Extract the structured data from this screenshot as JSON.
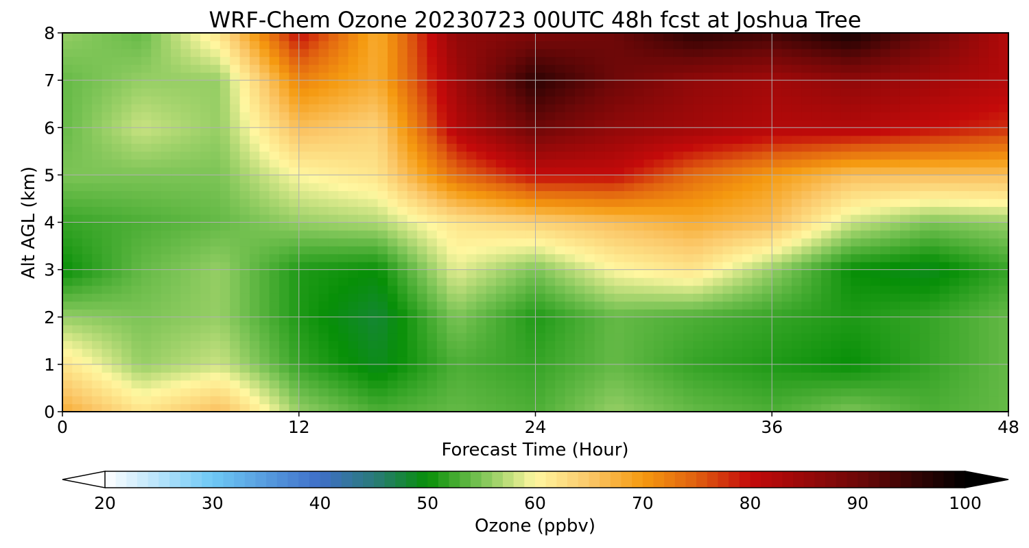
{
  "chart_data": {
    "type": "heatmap",
    "title": "WRF-Chem Ozone  20230723 00UTC 48h fcst at Joshua Tree",
    "xlabel": "Forecast Time (Hour)",
    "ylabel": "Alt AGL (km)",
    "x_ticks": [
      "0",
      "12",
      "24",
      "36",
      "48"
    ],
    "y_ticks": [
      "0",
      "1",
      "2",
      "3",
      "4",
      "5",
      "6",
      "7",
      "8"
    ],
    "xlim": [
      0,
      48
    ],
    "ylim": [
      0,
      8
    ],
    "grid": true,
    "x": [
      0,
      4,
      8,
      12,
      16,
      20,
      24,
      28,
      32,
      36,
      40,
      44,
      48
    ],
    "y": [
      0,
      1,
      2,
      3,
      4,
      5,
      6,
      7,
      8
    ],
    "z": [
      [
        68,
        62,
        66,
        56,
        53,
        54,
        53,
        56,
        54,
        53,
        55,
        53,
        54
      ],
      [
        62,
        56,
        58,
        52,
        49,
        53,
        52,
        54,
        52,
        51,
        50,
        52,
        54
      ],
      [
        56,
        55,
        56,
        51,
        48,
        55,
        51,
        54,
        53,
        52,
        51,
        52,
        54
      ],
      [
        50,
        54,
        56,
        51,
        50,
        59,
        55,
        60,
        62,
        56,
        50,
        49,
        52
      ],
      [
        52,
        53,
        54,
        56,
        57,
        62,
        64,
        66,
        68,
        66,
        58,
        55,
        56
      ],
      [
        55,
        55,
        55,
        60,
        62,
        74,
        80,
        80,
        74,
        70,
        66,
        66,
        66
      ],
      [
        54,
        58,
        56,
        66,
        64,
        82,
        90,
        86,
        84,
        82,
        82,
        80,
        78
      ],
      [
        54,
        56,
        56,
        72,
        68,
        84,
        96,
        90,
        86,
        84,
        86,
        84,
        82
      ],
      [
        56,
        54,
        62,
        80,
        68,
        86,
        88,
        90,
        96,
        94,
        98,
        90,
        82
      ]
    ],
    "colorbar": {
      "label": "Ozone  (ppbv)",
      "min": 20,
      "max": 100,
      "ticks": [
        "20",
        "30",
        "40",
        "50",
        "60",
        "70",
        "80",
        "90",
        "100"
      ],
      "extend": "both",
      "colors": [
        {
          "value": 20,
          "color": "#ffffff"
        },
        {
          "value": 30,
          "color": "#6ec8f5"
        },
        {
          "value": 40,
          "color": "#3f6fc8"
        },
        {
          "value": 45,
          "color": "#2a7a7a"
        },
        {
          "value": 50,
          "color": "#078f07"
        },
        {
          "value": 55,
          "color": "#7cc456"
        },
        {
          "value": 60,
          "color": "#fff7a0"
        },
        {
          "value": 65,
          "color": "#fbc86a"
        },
        {
          "value": 70,
          "color": "#f59a10"
        },
        {
          "value": 75,
          "color": "#e06010"
        },
        {
          "value": 80,
          "color": "#c40a0a"
        },
        {
          "value": 90,
          "color": "#6e0808"
        },
        {
          "value": 100,
          "color": "#000000"
        }
      ]
    }
  }
}
